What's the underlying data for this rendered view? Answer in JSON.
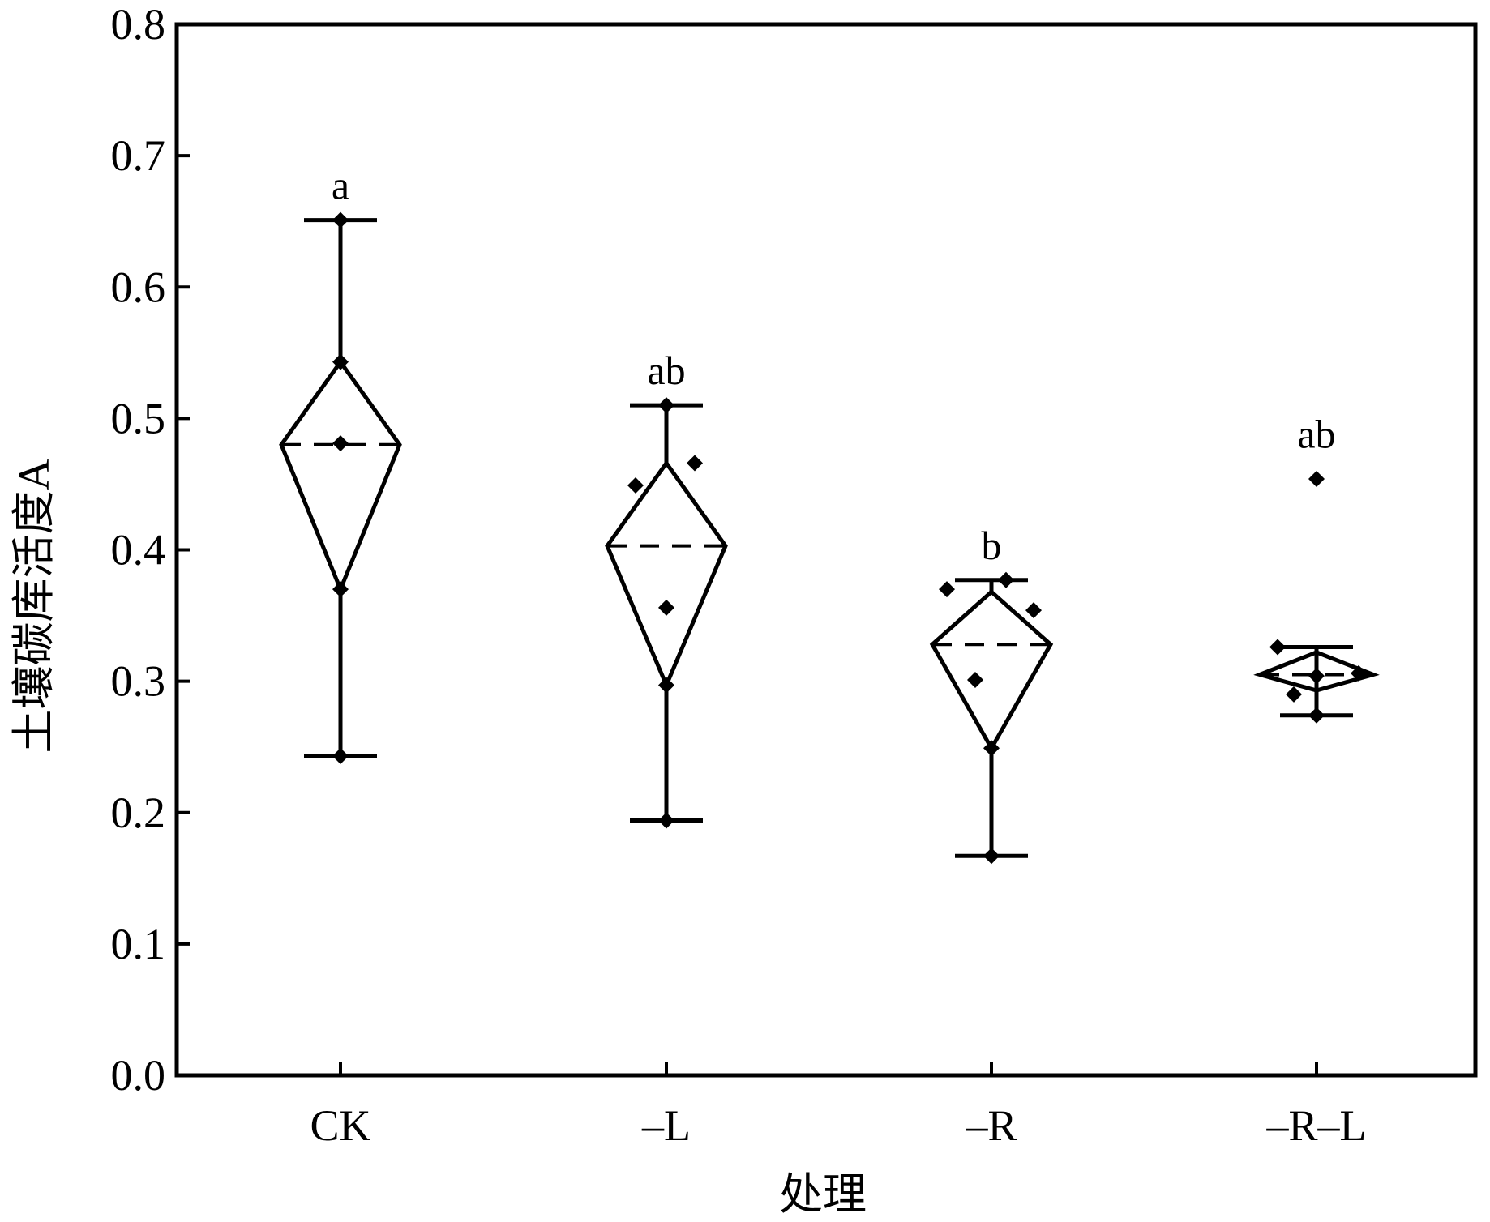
{
  "chart_data": {
    "type": "box",
    "xlabel": "处理",
    "ylabel": "土壤碳库活度A",
    "ylim": [
      0.0,
      0.8
    ],
    "yticks": [
      "0.0",
      "0.1",
      "0.2",
      "0.3",
      "0.4",
      "0.5",
      "0.6",
      "0.7",
      "0.8"
    ],
    "categories": [
      "CK",
      "–L",
      "–R",
      "–R–L"
    ],
    "groups": [
      {
        "category": "CK",
        "mean": 0.48,
        "diamond_low": 0.37,
        "diamond_high": 0.543,
        "whisker_low": 0.243,
        "whisker_high": 0.651,
        "significance": "a",
        "points": [
          0.651,
          0.543,
          0.481,
          0.37,
          0.243
        ]
      },
      {
        "category": "–L",
        "mean": 0.403,
        "diamond_low": 0.297,
        "diamond_high": 0.466,
        "whisker_low": 0.194,
        "whisker_high": 0.51,
        "significance": "ab",
        "points": [
          0.51,
          0.466,
          0.449,
          0.356,
          0.297,
          0.194
        ]
      },
      {
        "category": "–R",
        "mean": 0.328,
        "diamond_low": 0.249,
        "diamond_high": 0.368,
        "whisker_low": 0.167,
        "whisker_high": 0.377,
        "significance": "b",
        "points": [
          0.377,
          0.37,
          0.354,
          0.301,
          0.249,
          0.167
        ]
      },
      {
        "category": "–R–L",
        "mean": 0.305,
        "diamond_low": 0.293,
        "diamond_high": 0.322,
        "whisker_low": 0.274,
        "whisker_high": 0.326,
        "significance": "ab",
        "points": [
          0.454,
          0.326,
          0.304,
          0.306,
          0.29,
          0.274
        ]
      }
    ]
  }
}
